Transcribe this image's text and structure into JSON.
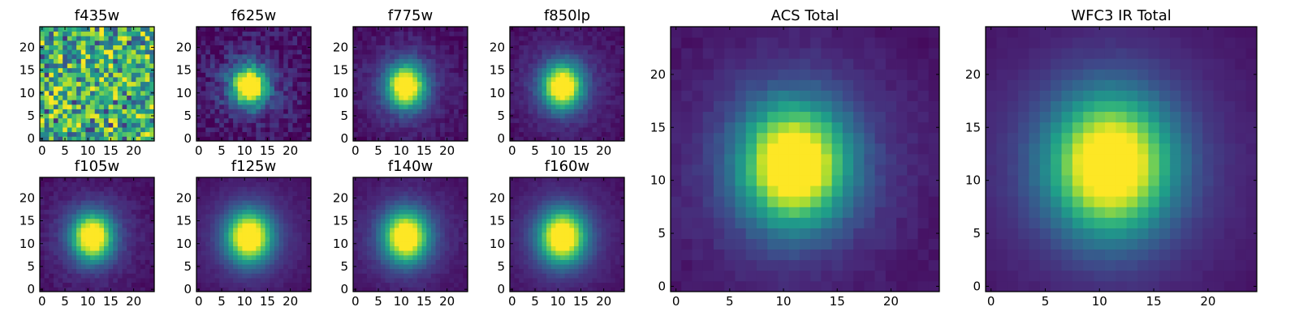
{
  "chart_data": [
    {
      "type": "heatmap",
      "title": "f435w",
      "kind": "noise",
      "peak": 0.5,
      "sigma": 4.0,
      "noise": 0.9,
      "seed": 11,
      "xticks": [
        0,
        5,
        10,
        15,
        20
      ],
      "yticks": [
        0,
        5,
        10,
        15,
        20
      ],
      "xlim": [
        0,
        25
      ],
      "ylim": [
        0,
        25
      ],
      "center": [
        11.5,
        12
      ]
    },
    {
      "type": "heatmap",
      "title": "f625w",
      "kind": "source",
      "peak": 1.0,
      "sigma": 2.6,
      "noise": 0.22,
      "seed": 21,
      "xticks": [
        0,
        5,
        10,
        15,
        20
      ],
      "yticks": [
        0,
        5,
        10,
        15,
        20
      ],
      "xlim": [
        0,
        25
      ],
      "ylim": [
        0,
        25
      ],
      "center": [
        11.5,
        12
      ]
    },
    {
      "type": "heatmap",
      "title": "f775w",
      "kind": "source",
      "peak": 1.0,
      "sigma": 2.8,
      "noise": 0.1,
      "seed": 31,
      "xticks": [
        0,
        5,
        10,
        15,
        20
      ],
      "yticks": [
        0,
        5,
        10,
        15,
        20
      ],
      "xlim": [
        0,
        25
      ],
      "ylim": [
        0,
        25
      ],
      "center": [
        11.5,
        12
      ]
    },
    {
      "type": "heatmap",
      "title": "f850lp",
      "kind": "source",
      "peak": 1.0,
      "sigma": 2.9,
      "noise": 0.08,
      "seed": 41,
      "xticks": [
        0,
        5,
        10,
        15,
        20
      ],
      "yticks": [
        0,
        5,
        10,
        15,
        20
      ],
      "xlim": [
        0,
        25
      ],
      "ylim": [
        0,
        25
      ],
      "center": [
        11.5,
        12
      ]
    },
    {
      "type": "heatmap",
      "title": "ACS Total",
      "kind": "source",
      "peak": 1.0,
      "sigma": 3.4,
      "noise": 0.05,
      "seed": 51,
      "xticks": [
        0,
        5,
        10,
        15,
        20
      ],
      "yticks": [
        0,
        5,
        10,
        15,
        20
      ],
      "xlim": [
        0,
        25
      ],
      "ylim": [
        0,
        25
      ],
      "center": [
        11.5,
        12
      ]
    },
    {
      "type": "heatmap",
      "title": "WFC3 IR Total",
      "kind": "source",
      "peak": 1.0,
      "sigma": 3.8,
      "noise": 0.02,
      "seed": 61,
      "xticks": [
        0,
        5,
        10,
        15,
        20
      ],
      "yticks": [
        0,
        5,
        10,
        15,
        20
      ],
      "xlim": [
        0,
        25
      ],
      "ylim": [
        0,
        25
      ],
      "center": [
        11.5,
        12
      ]
    },
    {
      "type": "heatmap",
      "title": "f105w",
      "kind": "source",
      "peak": 1.0,
      "sigma": 3.0,
      "noise": 0.07,
      "seed": 71,
      "xticks": [
        0,
        5,
        10,
        15,
        20
      ],
      "yticks": [
        0,
        5,
        10,
        15,
        20
      ],
      "xlim": [
        0,
        25
      ],
      "ylim": [
        0,
        25
      ],
      "center": [
        11.5,
        12
      ]
    },
    {
      "type": "heatmap",
      "title": "f125w",
      "kind": "source",
      "peak": 1.0,
      "sigma": 3.3,
      "noise": 0.04,
      "seed": 81,
      "xticks": [
        0,
        5,
        10,
        15,
        20
      ],
      "yticks": [
        0,
        5,
        10,
        15,
        20
      ],
      "xlim": [
        0,
        25
      ],
      "ylim": [
        0,
        25
      ],
      "center": [
        11.5,
        12
      ]
    },
    {
      "type": "heatmap",
      "title": "f140w",
      "kind": "source",
      "peak": 1.0,
      "sigma": 3.3,
      "noise": 0.05,
      "seed": 91,
      "xticks": [
        0,
        5,
        10,
        15,
        20
      ],
      "yticks": [
        0,
        5,
        10,
        15,
        20
      ],
      "xlim": [
        0,
        25
      ],
      "ylim": [
        0,
        25
      ],
      "center": [
        11.5,
        12
      ]
    },
    {
      "type": "heatmap",
      "title": "f160w",
      "kind": "source",
      "peak": 1.0,
      "sigma": 3.4,
      "noise": 0.04,
      "seed": 101,
      "xticks": [
        0,
        5,
        10,
        15,
        20
      ],
      "yticks": [
        0,
        5,
        10,
        15,
        20
      ],
      "xlim": [
        0,
        25
      ],
      "ylim": [
        0,
        25
      ],
      "center": [
        11.5,
        12
      ]
    }
  ],
  "colormap": "viridis",
  "grid": false
}
